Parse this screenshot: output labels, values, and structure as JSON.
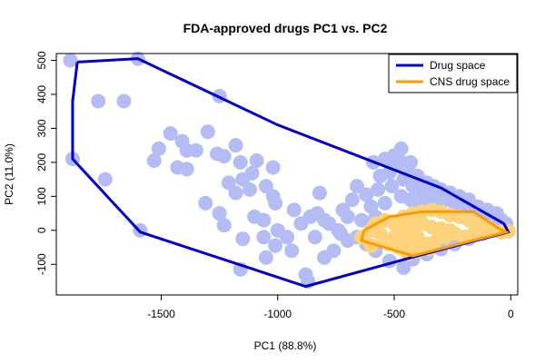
{
  "chart_data": {
    "type": "scatter",
    "title": "FDA-approved drugs PC1 vs. PC2",
    "xlabel": "PC1 (88.8%)",
    "ylabel": "PC2 (11.0%)",
    "xlim": [
      -1950,
      30
    ],
    "ylim": [
      -190,
      520
    ],
    "xticks": [
      -1500,
      -1000,
      -500,
      0
    ],
    "yticks": [
      -100,
      0,
      100,
      200,
      300,
      400,
      500
    ],
    "xtick_labels": [
      "-1500",
      "-1000",
      "-500",
      "0"
    ],
    "ytick_labels": [
      "-100",
      "0",
      "100",
      "200",
      "300",
      "400",
      "500"
    ],
    "grid": false,
    "legend_position": "top-right",
    "legend": [
      {
        "label": "Drug space",
        "color": "#0000cc"
      },
      {
        "label": "CNS drug space",
        "color": "#ff9900"
      }
    ],
    "colors": {
      "drug_points": "#b3bcf5",
      "cns_points": "#fcd27a",
      "drug_hull": "#0000cc",
      "cns_hull": "#ff9900"
    },
    "series": [
      {
        "role": "drug_points",
        "points": [
          [
            -1890,
            500
          ],
          [
            -1600,
            505
          ],
          [
            -1770,
            380
          ],
          [
            -1660,
            380
          ],
          [
            -1880,
            210
          ],
          [
            -1740,
            150
          ],
          [
            -1590,
            0
          ],
          [
            -1250,
            395
          ],
          [
            -1460,
            285
          ],
          [
            -1510,
            240
          ],
          [
            -1530,
            205
          ],
          [
            -1410,
            262
          ],
          [
            -1390,
            235
          ],
          [
            -1350,
            235
          ],
          [
            -1300,
            290
          ],
          [
            -1260,
            225
          ],
          [
            -1180,
            250
          ],
          [
            -1230,
            218
          ],
          [
            -1430,
            185
          ],
          [
            -1390,
            180
          ],
          [
            -1160,
            200
          ],
          [
            -1090,
            205
          ],
          [
            -1110,
            168
          ],
          [
            -1020,
            185
          ],
          [
            -1210,
            140
          ],
          [
            -1150,
            150
          ],
          [
            -1120,
            120
          ],
          [
            -1180,
            110
          ],
          [
            -1310,
            80
          ],
          [
            -1050,
            130
          ],
          [
            -1020,
            100
          ],
          [
            -1250,
            50
          ],
          [
            -1230,
            15
          ],
          [
            -1100,
            40
          ],
          [
            -1060,
            30
          ],
          [
            -1010,
            80
          ],
          [
            -930,
            60
          ],
          [
            -860,
            40
          ],
          [
            -830,
            50
          ],
          [
            -800,
            30
          ],
          [
            -1150,
            -25
          ],
          [
            -1060,
            -20
          ],
          [
            -1010,
            -45
          ],
          [
            -1160,
            -115
          ],
          [
            -1050,
            -80
          ],
          [
            -940,
            -60
          ],
          [
            -880,
            -130
          ],
          [
            -870,
            -150
          ],
          [
            -800,
            -80
          ],
          [
            -760,
            -60
          ],
          [
            -730,
            -10
          ],
          [
            -700,
            40
          ],
          [
            -820,
            110
          ],
          [
            -620,
            105
          ],
          [
            -570,
            120
          ],
          [
            -680,
            90
          ],
          [
            -600,
            70
          ],
          [
            -540,
            80
          ],
          [
            -520,
            170
          ],
          [
            -500,
            190
          ],
          [
            -480,
            210
          ],
          [
            -460,
            150
          ],
          [
            -440,
            180
          ],
          [
            -420,
            130
          ],
          [
            -400,
            160
          ],
          [
            -380,
            110
          ],
          [
            -360,
            140
          ],
          [
            -340,
            120
          ],
          [
            -320,
            100
          ],
          [
            -300,
            120
          ],
          [
            -280,
            90
          ],
          [
            -260,
            110
          ],
          [
            -240,
            80
          ],
          [
            -220,
            100
          ],
          [
            -200,
            70
          ],
          [
            -180,
            90
          ],
          [
            -160,
            60
          ],
          [
            -140,
            70
          ],
          [
            -120,
            50
          ],
          [
            -100,
            60
          ],
          [
            -80,
            40
          ],
          [
            -60,
            50
          ],
          [
            -40,
            30
          ],
          [
            -20,
            20
          ],
          [
            -500,
            220
          ],
          [
            -470,
            240
          ],
          [
            -430,
            200
          ],
          [
            -560,
            160
          ],
          [
            -510,
            130
          ],
          [
            -470,
            100
          ],
          [
            -430,
            90
          ],
          [
            -390,
            70
          ],
          [
            -350,
            80
          ],
          [
            -310,
            60
          ],
          [
            -580,
            40
          ],
          [
            -640,
            30
          ],
          [
            -660,
            -20
          ],
          [
            -620,
            -40
          ],
          [
            -580,
            -60
          ],
          [
            -520,
            -90
          ],
          [
            -460,
            -110
          ],
          [
            -420,
            -85
          ],
          [
            -360,
            -70
          ],
          [
            -300,
            -55
          ],
          [
            -240,
            -40
          ],
          [
            -180,
            -25
          ],
          [
            -120,
            -10
          ],
          [
            -60,
            0
          ],
          [
            -700,
            -30
          ],
          [
            -740,
            0
          ],
          [
            -780,
            20
          ],
          [
            -840,
            -20
          ],
          [
            -900,
            20
          ],
          [
            -960,
            -20
          ],
          [
            -1000,
            0
          ],
          [
            -720,
            60
          ],
          [
            -660,
            130
          ],
          [
            -590,
            200
          ],
          [
            -540,
            210
          ],
          [
            -450,
            170
          ],
          [
            -410,
            150
          ],
          [
            -330,
            130
          ],
          [
            -270,
            110
          ],
          [
            -210,
            80
          ],
          [
            -150,
            40
          ],
          [
            -90,
            20
          ]
        ]
      },
      {
        "role": "cns_points",
        "points": [
          [
            -640,
            -20
          ],
          [
            -600,
            0
          ],
          [
            -560,
            -10
          ],
          [
            -520,
            -40
          ],
          [
            -480,
            -50
          ],
          [
            -440,
            -30
          ],
          [
            -400,
            -20
          ],
          [
            -360,
            -40
          ],
          [
            -320,
            -30
          ],
          [
            -280,
            -20
          ],
          [
            -240,
            -10
          ],
          [
            -200,
            -20
          ],
          [
            -160,
            -10
          ],
          [
            -120,
            0
          ],
          [
            -80,
            0
          ],
          [
            -40,
            -5
          ],
          [
            -10,
            -3
          ],
          [
            -580,
            20
          ],
          [
            -540,
            30
          ],
          [
            -500,
            20
          ],
          [
            -460,
            40
          ],
          [
            -420,
            50
          ],
          [
            -380,
            55
          ],
          [
            -340,
            60
          ],
          [
            -300,
            55
          ],
          [
            -260,
            45
          ],
          [
            -220,
            40
          ],
          [
            -180,
            30
          ],
          [
            -140,
            20
          ],
          [
            -100,
            10
          ],
          [
            -460,
            0
          ],
          [
            -420,
            10
          ],
          [
            -380,
            20
          ],
          [
            -340,
            10
          ],
          [
            -300,
            5
          ],
          [
            -260,
            0
          ],
          [
            -500,
            -20
          ],
          [
            -550,
            -30
          ],
          [
            -600,
            -45
          ],
          [
            -400,
            -60
          ],
          [
            -350,
            -55
          ],
          [
            -440,
            -70
          ]
        ]
      },
      {
        "role": "drug_hull",
        "points": [
          [
            -1860,
            495
          ],
          [
            -1600,
            505
          ],
          [
            -1000,
            310
          ],
          [
            -300,
            125
          ],
          [
            -30,
            20
          ],
          [
            -10,
            -5
          ],
          [
            -400,
            -75
          ],
          [
            -880,
            -165
          ],
          [
            -1590,
            -5
          ],
          [
            -1880,
            210
          ],
          [
            -1880,
            380
          ],
          [
            -1860,
            495
          ]
        ]
      },
      {
        "role": "cns_hull",
        "points": [
          [
            -630,
            0
          ],
          [
            -520,
            40
          ],
          [
            -380,
            55
          ],
          [
            -160,
            55
          ],
          [
            -50,
            5
          ],
          [
            -20,
            -5
          ],
          [
            -420,
            -75
          ],
          [
            -640,
            -30
          ],
          [
            -630,
            0
          ]
        ]
      }
    ]
  }
}
